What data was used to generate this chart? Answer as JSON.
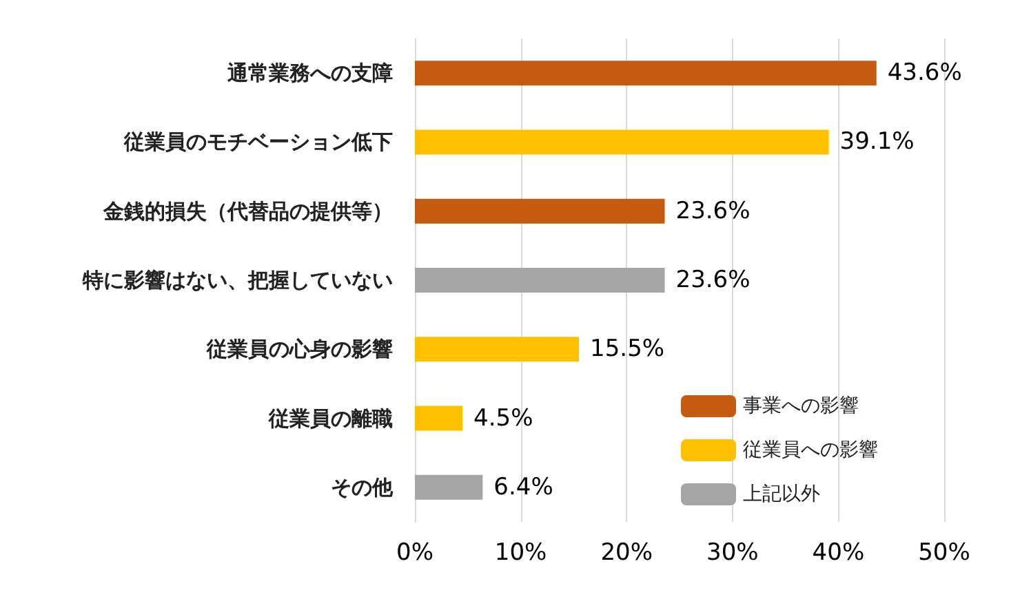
{
  "chart_data": {
    "type": "bar",
    "orientation": "horizontal",
    "stacked": true,
    "categories": [
      "通常業務への支障",
      "従業員のモチベーション低下",
      "金銭的損失（代替品の提供等）",
      "特に影響はない、把握していない",
      "従業員の心身の影響",
      "従業員の離職",
      "その他"
    ],
    "series": [
      {
        "name": "事業への影響",
        "color": "#c55a11",
        "values": [
          43.6,
          null,
          23.6,
          null,
          null,
          null,
          null
        ],
        "value_labels": [
          "43.6%",
          null,
          "23.6%",
          null,
          null,
          null,
          null
        ]
      },
      {
        "name": "従業員への影響",
        "color": "#ffc000",
        "values": [
          null,
          39.1,
          null,
          null,
          15.5,
          4.5,
          null
        ],
        "value_labels": [
          null,
          "39.1%",
          null,
          null,
          "15.5%",
          "4.5%",
          null
        ]
      },
      {
        "name": "上記以外",
        "color": "#a5a5a5",
        "values": [
          null,
          null,
          null,
          23.6,
          null,
          null,
          6.4
        ],
        "value_labels": [
          null,
          null,
          null,
          "23.6%",
          null,
          null,
          "6.4%"
        ]
      }
    ],
    "xlim": [
      0,
      50
    ],
    "xticks": [
      {
        "value": 0,
        "label": "0%"
      },
      {
        "value": 10,
        "label": "10%"
      },
      {
        "value": 20,
        "label": "20%"
      },
      {
        "value": 30,
        "label": "30%"
      },
      {
        "value": 40,
        "label": "40%"
      },
      {
        "value": 50,
        "label": "50%"
      }
    ],
    "grid": "x",
    "legend": "bottom right"
  }
}
